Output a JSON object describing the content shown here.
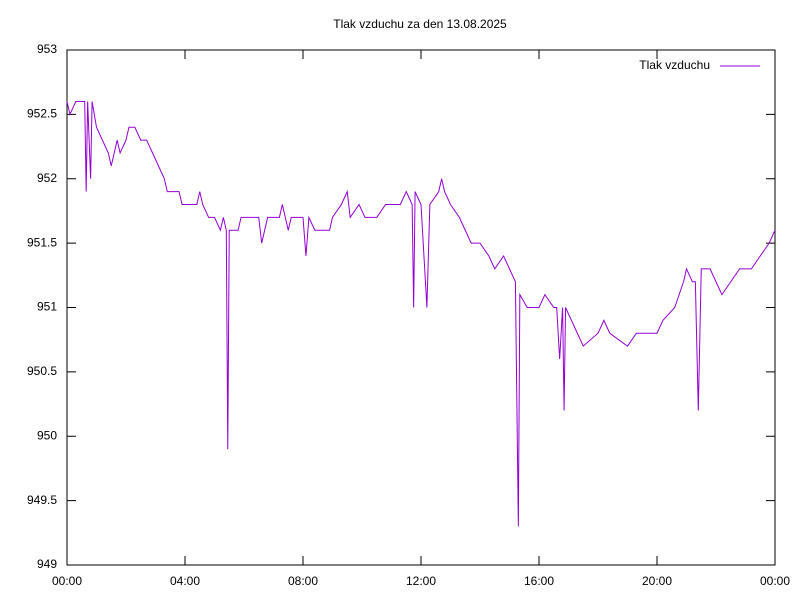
{
  "chart_data": {
    "type": "line",
    "title": "Tlak vzduchu za den 13.08.2025",
    "x": [
      0,
      0.1,
      0.3,
      0.6,
      0.65,
      0.7,
      0.8,
      0.85,
      1.0,
      1.2,
      1.4,
      1.5,
      1.6,
      1.7,
      1.8,
      2.0,
      2.1,
      2.3,
      2.5,
      2.7,
      2.9,
      3.1,
      3.3,
      3.4,
      3.8,
      3.9,
      4.4,
      4.5,
      4.6,
      4.8,
      5.0,
      5.2,
      5.3,
      5.4,
      5.45,
      5.5,
      5.8,
      5.9,
      6.5,
      6.6,
      6.8,
      7.2,
      7.3,
      7.5,
      7.6,
      8.0,
      8.1,
      8.2,
      8.4,
      8.9,
      9.0,
      9.3,
      9.5,
      9.6,
      9.9,
      10.1,
      10.5,
      10.8,
      11.3,
      11.5,
      11.7,
      11.75,
      11.8,
      12.0,
      12.2,
      12.3,
      12.6,
      12.7,
      12.8,
      13.0,
      13.3,
      13.5,
      13.7,
      14.0,
      14.3,
      14.5,
      14.8,
      15.0,
      15.2,
      15.3,
      15.35,
      15.6,
      16.0,
      16.2,
      16.5,
      16.6,
      16.7,
      16.8,
      16.85,
      16.9,
      17.1,
      17.3,
      17.5,
      18.0,
      18.2,
      18.4,
      19.0,
      19.3,
      20.0,
      20.2,
      20.6,
      20.9,
      21.0,
      21.2,
      21.3,
      21.4,
      21.5,
      21.8,
      22.0,
      22.2,
      22.5,
      22.8,
      23.2,
      23.5,
      23.8,
      24.0
    ],
    "series": [
      {
        "name": "Tlak vzduchu",
        "color": "#9400d3",
        "values": [
          952.6,
          952.5,
          952.6,
          952.6,
          951.9,
          952.6,
          952.0,
          952.6,
          952.4,
          952.3,
          952.2,
          952.1,
          952.2,
          952.3,
          952.2,
          952.3,
          952.4,
          952.4,
          952.3,
          952.3,
          952.2,
          952.1,
          952.0,
          951.9,
          951.9,
          951.8,
          951.8,
          951.9,
          951.8,
          951.7,
          951.7,
          951.6,
          951.7,
          951.6,
          949.9,
          951.6,
          951.6,
          951.7,
          951.7,
          951.5,
          951.7,
          951.7,
          951.8,
          951.6,
          951.7,
          951.7,
          951.4,
          951.7,
          951.6,
          951.6,
          951.7,
          951.8,
          951.9,
          951.7,
          951.8,
          951.7,
          951.7,
          951.8,
          951.8,
          951.9,
          951.8,
          951.0,
          951.9,
          951.8,
          951.0,
          951.8,
          951.9,
          952.0,
          951.9,
          951.8,
          951.7,
          951.6,
          951.5,
          951.5,
          951.4,
          951.3,
          951.4,
          951.3,
          951.2,
          949.3,
          951.1,
          951.0,
          951.0,
          951.1,
          951.0,
          951.0,
          950.6,
          951.0,
          950.2,
          951.0,
          950.9,
          950.8,
          950.7,
          950.8,
          950.9,
          950.8,
          950.7,
          950.8,
          950.8,
          950.9,
          951.0,
          951.2,
          951.3,
          951.2,
          951.2,
          950.2,
          951.3,
          951.3,
          951.2,
          951.1,
          951.2,
          951.3,
          951.3,
          951.4,
          951.5,
          951.6
        ]
      }
    ],
    "xlim": [
      0,
      24
    ],
    "xticks": [
      {
        "value": 0,
        "label": "00:00"
      },
      {
        "value": 4,
        "label": "04:00"
      },
      {
        "value": 8,
        "label": "08:00"
      },
      {
        "value": 12,
        "label": "12:00"
      },
      {
        "value": 16,
        "label": "16:00"
      },
      {
        "value": 20,
        "label": "20:00"
      },
      {
        "value": 24,
        "label": "00:00"
      }
    ],
    "ylim": [
      949,
      953
    ],
    "yticks": [
      949,
      949.5,
      950,
      950.5,
      951,
      951.5,
      952,
      952.5,
      953
    ],
    "grid": false,
    "legend": "top-right"
  }
}
